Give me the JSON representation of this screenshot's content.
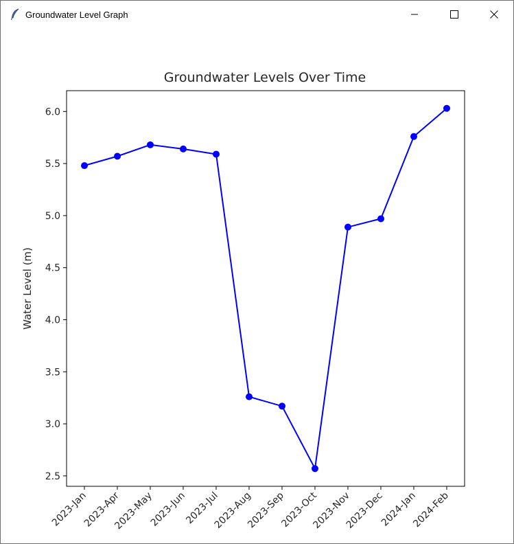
{
  "window": {
    "title": "Groundwater Level Graph",
    "icon": "feather-icon",
    "controls": [
      "minimize-icon",
      "maximize-icon",
      "close-icon"
    ]
  },
  "colors": {
    "series": "#0000ff",
    "axes": "#000000",
    "text": "#262626"
  },
  "chart_data": {
    "type": "line",
    "title": "Groundwater Levels Over Time",
    "xlabel": "",
    "ylabel": "Water Level (m)",
    "categories": [
      "2023-Jan",
      "2023-Apr",
      "2023-May",
      "2023-Jun",
      "2023-Jul",
      "2023-Aug",
      "2023-Sep",
      "2023-Oct",
      "2023-Nov",
      "2023-Dec",
      "2024-Jan",
      "2024-Feb"
    ],
    "series": [
      {
        "values": [
          5.48,
          5.57,
          5.68,
          5.64,
          5.59,
          3.26,
          3.17,
          2.57,
          4.89,
          4.97,
          5.76,
          6.03
        ],
        "marker": "circle",
        "color": "#0000ff"
      }
    ],
    "ylim": [
      2.4,
      6.2
    ],
    "yticks": [
      2.5,
      3.0,
      3.5,
      4.0,
      4.5,
      5.0,
      5.5,
      6.0
    ],
    "ytick_labels": [
      "2.5",
      "3.0",
      "3.5",
      "4.0",
      "4.5",
      "5.0",
      "5.5",
      "6.0"
    ],
    "grid": false,
    "legend": "none"
  }
}
